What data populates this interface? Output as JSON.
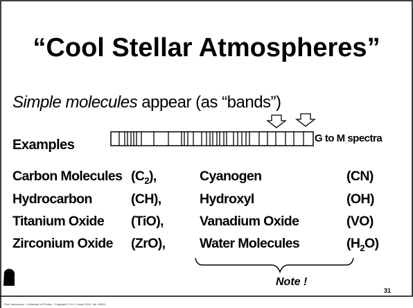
{
  "slide": {
    "title": "“Cool Stellar Atmospheres”",
    "subtitle": {
      "italic": "Simple molecules",
      "rest": " appear (as “bands”)"
    },
    "examples": {
      "label": "Examples",
      "range": "G to M spectra"
    },
    "rows": [
      {
        "name1": "Carbon Molecules",
        "formula1": [
          {
            "text": "(C"
          },
          {
            "text": "2",
            "sub": true
          },
          {
            "text": "),"
          }
        ],
        "name2": "Cyanogen",
        "formula2": [
          {
            "text": "(CN)"
          }
        ]
      },
      {
        "name1": "Hydrocarbon",
        "formula1": [
          {
            "text": "(CH),"
          }
        ],
        "name2": "Hydroxyl",
        "formula2": [
          {
            "text": "(OH)"
          }
        ]
      },
      {
        "name1": "Titanium Oxide",
        "formula1": [
          {
            "text": "(TiO),"
          }
        ],
        "name2": "Vanadium Oxide",
        "formula2": [
          {
            "text": "(VO)"
          }
        ]
      },
      {
        "name1": "Zirconium Oxide",
        "formula1": [
          {
            "text": "(ZrO),"
          }
        ],
        "name2": "Water Molecules",
        "formula2": [
          {
            "text": "(H"
          },
          {
            "text": "2",
            "sub": true
          },
          {
            "text": "O)"
          }
        ]
      }
    ],
    "note": "Note !",
    "footer": "Prof. Astronomy – University of Florida – Copyright © H.L. Cohen 2001, Ver. 8/8/01",
    "page_number": "31"
  }
}
